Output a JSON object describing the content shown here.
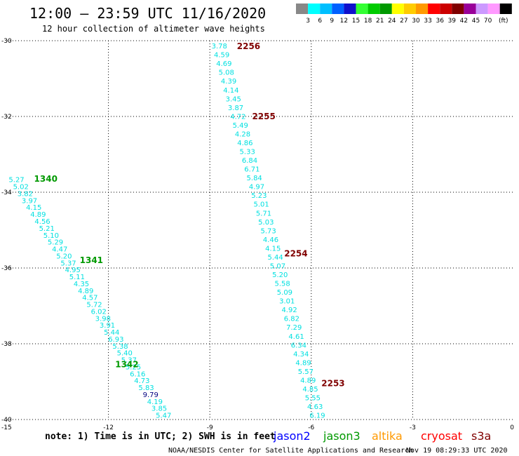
{
  "header": {
    "title": "12:00 – 23:59 UTC 11/16/2020",
    "subtitle": "12 hour collection of altimeter wave heights"
  },
  "legend": {
    "unit": "(ft)",
    "bins": [
      {
        "label": "",
        "color": "#888888"
      },
      {
        "label": "3",
        "color": "#00ffff"
      },
      {
        "label": "6",
        "color": "#00bfff"
      },
      {
        "label": "9",
        "color": "#0060ff"
      },
      {
        "label": "12",
        "color": "#1010cc"
      },
      {
        "label": "15",
        "color": "#33ff33"
      },
      {
        "label": "18",
        "color": "#00cc00"
      },
      {
        "label": "21",
        "color": "#009900"
      },
      {
        "label": "24",
        "color": "#ffff00"
      },
      {
        "label": "27",
        "color": "#ffcc00"
      },
      {
        "label": "30",
        "color": "#ff9900"
      },
      {
        "label": "33",
        "color": "#ff0000"
      },
      {
        "label": "36",
        "color": "#cc0000"
      },
      {
        "label": "39",
        "color": "#800000"
      },
      {
        "label": "42",
        "color": "#990099"
      },
      {
        "label": "45",
        "color": "#cc99ff"
      },
      {
        "label": "70",
        "color": "#ff99ff"
      },
      {
        "label": "",
        "color": "#000000"
      }
    ]
  },
  "colors": {
    "low_swh": "#00e0e0",
    "high_swh": "#000080",
    "jason2": "#0000ff",
    "jason3": "#009900",
    "altika": "#ff9900",
    "cryosat": "#ff0000",
    "s3a": "#800000"
  },
  "chart_data": {
    "type": "scatter",
    "xlim": [
      -15,
      0
    ],
    "ylim": [
      -40,
      -30
    ],
    "grid": true,
    "x_ticks": [
      -15,
      -12,
      -9,
      -6,
      -3,
      0
    ],
    "x_tick_labels": [
      "-15",
      "-12",
      "-9",
      "-6",
      "-3",
      "0"
    ],
    "y_ticks": [
      -30,
      -32,
      -34,
      -36,
      -38,
      -40
    ],
    "y_tick_labels": [
      "-30",
      "-32",
      "-34",
      "-36",
      "-38",
      "-40"
    ],
    "tracks": [
      {
        "satellite": "s3a",
        "labels": [
          {
            "text": "2256",
            "lon": -8.2,
            "lat": -30.15
          },
          {
            "text": "2255",
            "lon": -7.75,
            "lat": -32.0
          },
          {
            "text": "2254",
            "lon": -6.8,
            "lat": -35.62
          },
          {
            "text": "2253",
            "lon": -5.7,
            "lat": -39.05
          }
        ],
        "start": {
          "lon": -8.95,
          "lat": -30.15
        },
        "end": {
          "lon": -6.05,
          "lat": -39.9
        },
        "values": [
          "3.78",
          "4.59",
          "4.69",
          "5.08",
          "4.39",
          "4.14",
          "3.45",
          "3.87",
          "4.72",
          "5.49",
          "4.28",
          "4.86",
          "5.33",
          "6.84",
          "6.71",
          "5.84",
          "4.97",
          "5.23",
          "5.01",
          "5.71",
          "5.03",
          "5.73",
          "4.46",
          "4.15",
          "5.44",
          "5.07",
          "5.20",
          "5.58",
          "5.09",
          "3.01",
          "4.92",
          "6.82",
          "7.29",
          "4.61",
          "6.34",
          "4.34",
          "4.89",
          "5.57",
          "4.89",
          "4.85",
          "5.55",
          "4.63",
          "6.19"
        ]
      },
      {
        "satellite": "jason3",
        "labels": [
          {
            "text": "1340",
            "lon": -14.2,
            "lat": -33.65
          },
          {
            "text": "1341",
            "lon": -12.85,
            "lat": -35.8
          },
          {
            "text": "1342",
            "lon": -11.8,
            "lat": -38.55
          }
        ],
        "start": {
          "lon": -14.95,
          "lat": -33.68
        },
        "end": {
          "lon": -10.6,
          "lat": -39.9
        },
        "values": [
          "5.27",
          "5.02",
          "3.82",
          "3.97",
          "4.15",
          "4.89",
          "4.56",
          "5.21",
          "5.10",
          "5.29",
          "4.47",
          "5.20",
          "5.37",
          "4.95",
          "5.11",
          "4.35",
          "4.89",
          "4.57",
          "5.72",
          "6.02",
          "3.98",
          "3.91",
          "5.44",
          "6.93",
          "5.38",
          "5.40",
          "5.37",
          "5.25",
          "6.16",
          "4.73",
          "5.83",
          "9.79",
          "4.19",
          "3.85",
          "5.47"
        ]
      }
    ]
  },
  "note": "note: 1) Time is in UTC; 2) SWH is in feet",
  "satellites": {
    "jason2": "jason2",
    "jason3": "jason3",
    "altika": "altika",
    "cryosat": "cryosat",
    "s3a": "s3a"
  },
  "credit": "NOAA/NESDIS Center for Satellite Applications and Research",
  "timestamp": "Nov 19 08:29:33 UTC 2020"
}
